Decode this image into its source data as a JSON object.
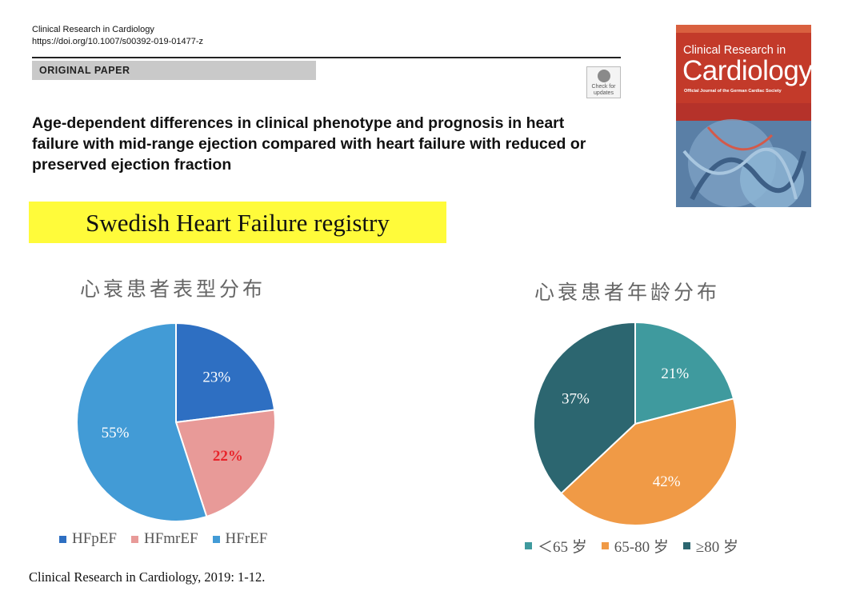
{
  "header": {
    "journal_name": "Clinical Research in Cardiology",
    "doi": "https://doi.org/10.1007/s00392-019-01477-z",
    "section": "ORIGINAL PAPER",
    "check_updates": "Check for updates"
  },
  "paper_title": "Age-dependent differences in clinical phenotype and prognosis in heart failure with mid-range ejection compared with heart failure with reduced or preserved ejection fraction",
  "cover": {
    "line1": "Clinical Research in",
    "line2": "Cardiology",
    "line3": "Official Journal of the German Cardiac Society"
  },
  "banner": "Swedish Heart Failure registry",
  "citation": "Clinical Research in Cardiology, 2019: 1-12.",
  "chart_data": [
    {
      "type": "pie",
      "title": "心衰患者表型分布",
      "slices": [
        {
          "name": "HFpEF",
          "value": 23,
          "label": "23%",
          "color": "#2e6fc2",
          "label_color": "#ffffff",
          "label_bold": false
        },
        {
          "name": "HFmrEF",
          "value": 22,
          "label": "22%",
          "color": "#e89a98",
          "label_color": "#e8232a",
          "label_bold": true
        },
        {
          "name": "HFrEF",
          "value": 55,
          "label": "55%",
          "color": "#429bd6",
          "label_color": "#ffffff",
          "label_bold": false
        }
      ],
      "legend": [
        "HFpEF",
        "HFmrEF",
        "HFrEF"
      ],
      "legend_placement": "bottom"
    },
    {
      "type": "pie",
      "title": "心衰患者年龄分布",
      "slices": [
        {
          "name": "＜65 岁",
          "value": 21,
          "label": "21%",
          "color": "#3f9a9e",
          "label_color": "#ffffff",
          "label_bold": false
        },
        {
          "name": "65-80 岁",
          "value": 42,
          "label": "42%",
          "color": "#f09a46",
          "label_color": "#ffffff",
          "label_bold": false
        },
        {
          "name": "≥80 岁",
          "value": 37,
          "label": "37%",
          "color": "#2c6670",
          "label_color": "#ffffff",
          "label_bold": false
        }
      ],
      "legend": [
        "＜65 岁",
        "65-80 岁",
        "≥80 岁"
      ],
      "legend_placement": "bottom"
    }
  ]
}
